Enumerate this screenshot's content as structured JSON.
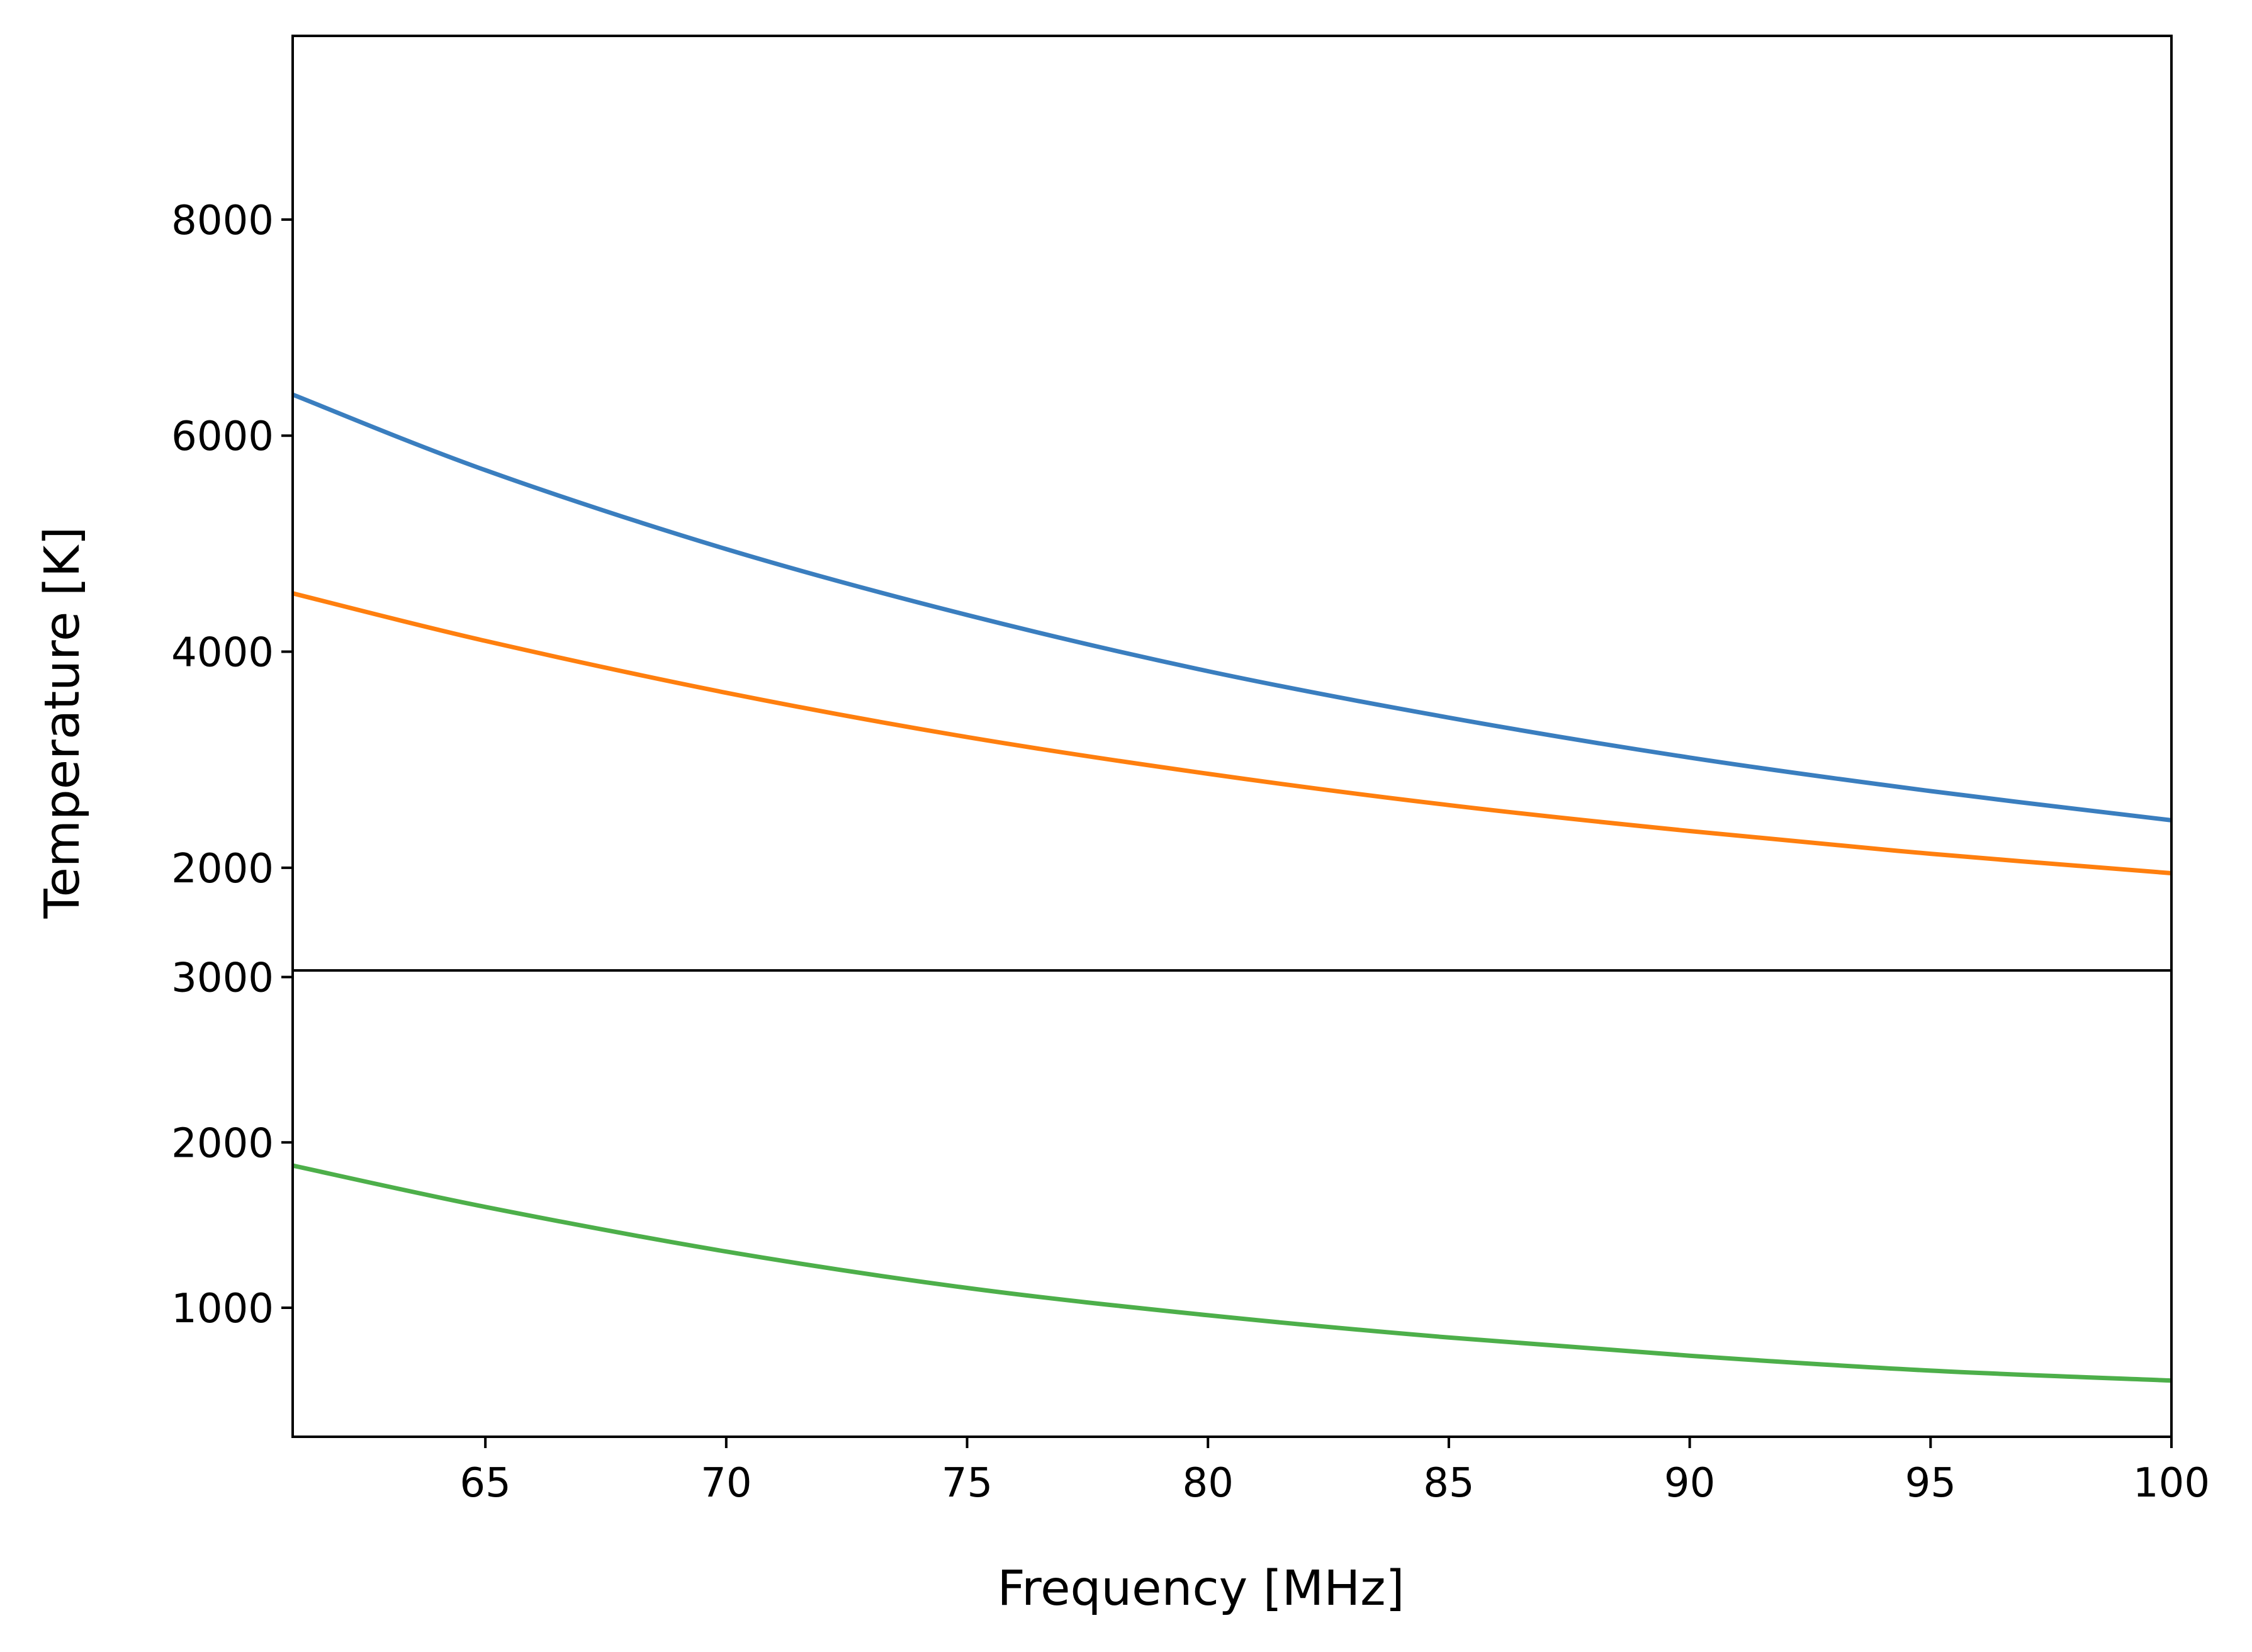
{
  "chart_data": {
    "type": "line",
    "xlabel": "Frequency [MHz]",
    "ylabel": "Temperature [K]",
    "xlim": [
      61,
      100
    ],
    "x_ticks": [
      65,
      70,
      75,
      80,
      85,
      90,
      95,
      100
    ],
    "x_tick_labels": [
      "65",
      "70",
      "75",
      "80",
      "85",
      "90",
      "95",
      "100"
    ],
    "panels": [
      {
        "name": "top",
        "ylim": [
          1050,
          9700
        ],
        "y_ticks": [
          2000,
          4000,
          6000,
          8000
        ],
        "y_tick_labels": [
          "2000",
          "4000",
          "6000",
          "8000"
        ],
        "series": [
          {
            "name": "series-1",
            "color": "#3a7ebf",
            "x": [
              61,
              65,
              70,
              75,
              80,
              85,
              90,
              95,
              100
            ],
            "y": [
              6380,
              5680,
              4950,
              4340,
              3820,
              3390,
              3020,
              2710,
              2440
            ]
          },
          {
            "name": "series-2",
            "color": "#ff7f0e",
            "x": [
              61,
              65,
              70,
              75,
              80,
              85,
              90,
              95,
              100
            ],
            "y": [
              4540,
              4100,
              3620,
              3210,
              2870,
              2580,
              2340,
              2130,
              1950
            ]
          }
        ]
      },
      {
        "name": "bottom",
        "ylim": [
          220,
          3040
        ],
        "y_ticks": [
          1000,
          2000,
          3000
        ],
        "y_tick_labels": [
          "1000",
          "2000",
          "3000"
        ],
        "series": [
          {
            "name": "series-3",
            "color": "#4daf4a",
            "x": [
              61,
              65,
              70,
              75,
              80,
              85,
              90,
              95,
              100
            ],
            "y": [
              1860,
              1610,
              1340,
              1120,
              955,
              820,
              710,
              620,
              560
            ]
          }
        ]
      }
    ]
  }
}
